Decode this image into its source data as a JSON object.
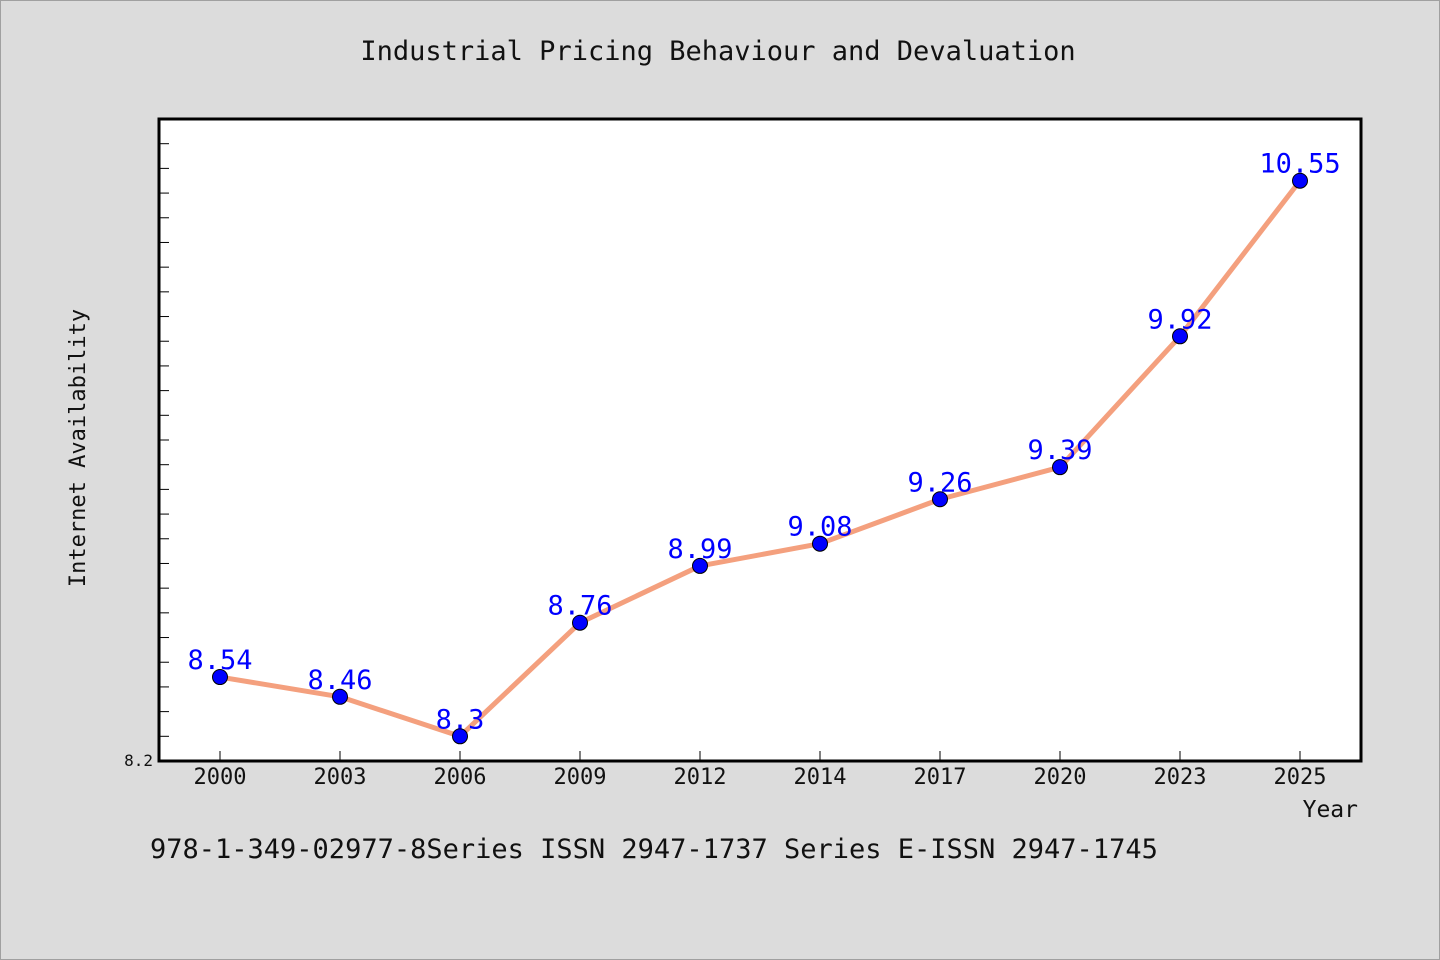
{
  "chart_data": {
    "type": "line",
    "title": "Industrial Pricing Behaviour and Devaluation",
    "xlabel": "Year",
    "ylabel": "Internet Availability",
    "categories": [
      "2000",
      "2003",
      "2006",
      "2009",
      "2012",
      "2014",
      "2017",
      "2020",
      "2023",
      "2025"
    ],
    "series": [
      {
        "values": [
          8.54,
          8.46,
          8.3,
          8.76,
          8.99,
          9.08,
          9.26,
          9.39,
          9.92,
          10.55
        ]
      }
    ],
    "data_labels": [
      "8.54",
      "8.46",
      "8.3",
      "8.76",
      "8.99",
      "9.08",
      "9.26",
      "9.39",
      "9.92",
      "10.55"
    ],
    "ylim": [
      8.2,
      10.8
    ],
    "y_tick_label": "8.2",
    "grid": false,
    "colors": {
      "line": "#f4a07e",
      "marker": "#0000ff",
      "data_label": "#0000ff",
      "plot_background": "#ffffff",
      "page_background": "#dcdcdc"
    }
  },
  "footer": {
    "text": "978-1-349-02977-8Series ISSN 2947-1737 Series E-ISSN 2947-1745"
  }
}
